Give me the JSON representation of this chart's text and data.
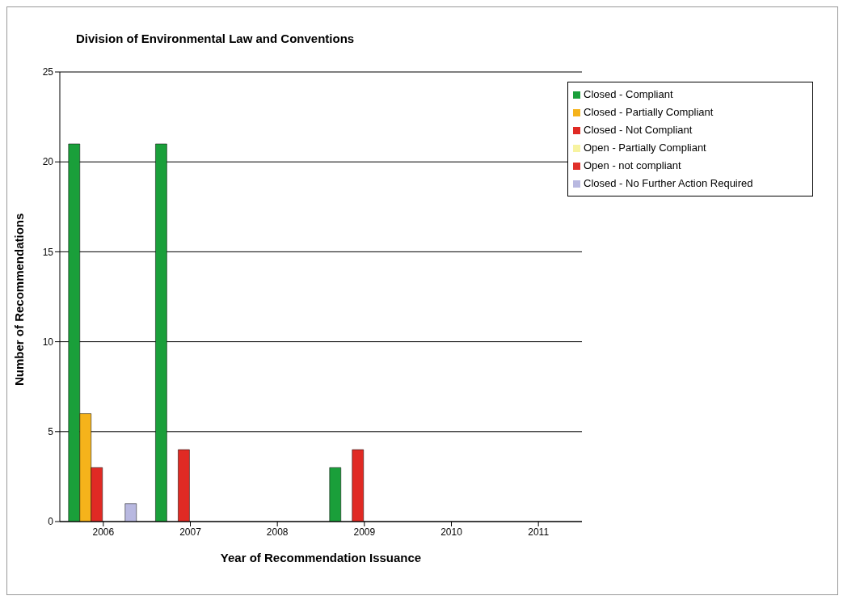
{
  "chart_data": {
    "type": "bar",
    "title": "Division of Environmental Law and Conventions",
    "xlabel": "Year of Recommendation Issuance",
    "ylabel": "Number of Recommendations",
    "categories": [
      "2006",
      "2007",
      "2008",
      "2009",
      "2010",
      "2011"
    ],
    "series": [
      {
        "name": "Closed - Compliant",
        "color": "#1a9f3a",
        "values": [
          21,
          21,
          0,
          3,
          0,
          0
        ]
      },
      {
        "name": "Closed - Partially Compliant",
        "color": "#f5b31b",
        "values": [
          6,
          0,
          0,
          0,
          0,
          0
        ]
      },
      {
        "name": "Closed - Not Compliant",
        "color": "#e02a24",
        "values": [
          3,
          4,
          0,
          4,
          0,
          0
        ]
      },
      {
        "name": "Open - Partially Compliant",
        "color": "#f7f3a0",
        "values": [
          0,
          0,
          0,
          0,
          0,
          0
        ]
      },
      {
        "name": "Open - not compliant",
        "color": "#e0302a",
        "values": [
          0,
          0,
          0,
          0,
          0,
          0
        ]
      },
      {
        "name": "Closed - No Further Action Required",
        "color": "#b8b8e0",
        "values": [
          1,
          0,
          0,
          0,
          0,
          0
        ]
      }
    ],
    "ylim": [
      0,
      25
    ],
    "yticks": [
      0,
      5,
      10,
      15,
      20,
      25
    ],
    "grid": "y",
    "legend": "top right"
  }
}
